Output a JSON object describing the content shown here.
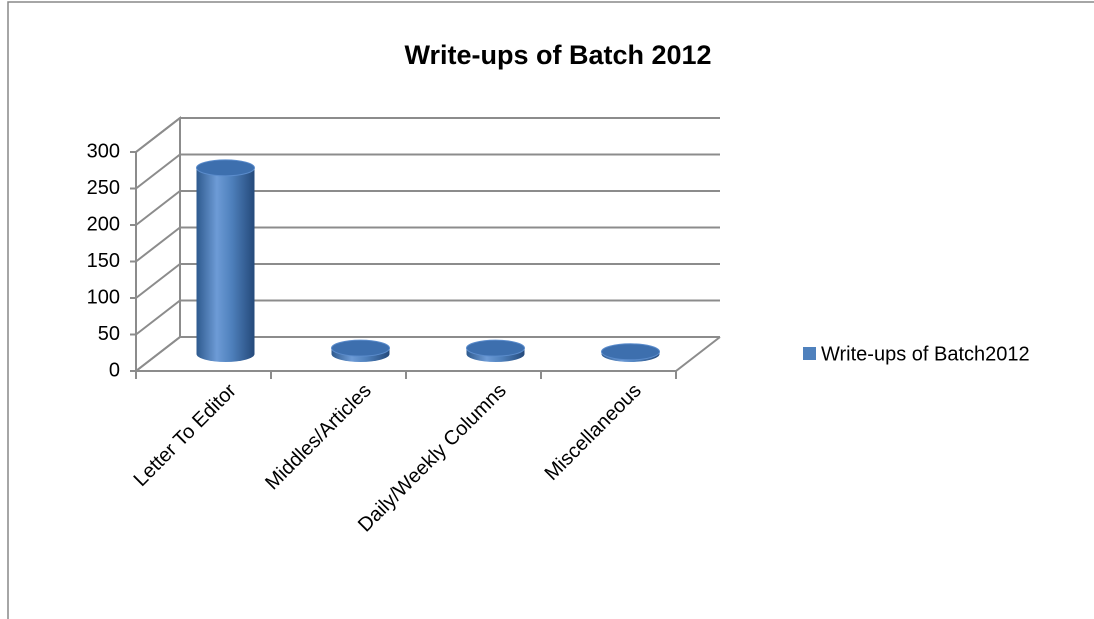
{
  "chart_data": {
    "type": "bar3d",
    "title": "Write-ups of Batch 2012",
    "categories": [
      "Letter To Editor",
      "Middles/Articles",
      "Daily/Weekly Columns",
      "Miscellaneous"
    ],
    "series": [
      {
        "name": "Write-ups of Batch2012",
        "color": "#4f81bd",
        "values": [
          255,
          8,
          8,
          3
        ]
      }
    ],
    "ylim": [
      0,
      300
    ],
    "yticks": [
      0,
      50,
      100,
      150,
      200,
      250,
      300
    ],
    "grid": true,
    "legend": "right"
  }
}
